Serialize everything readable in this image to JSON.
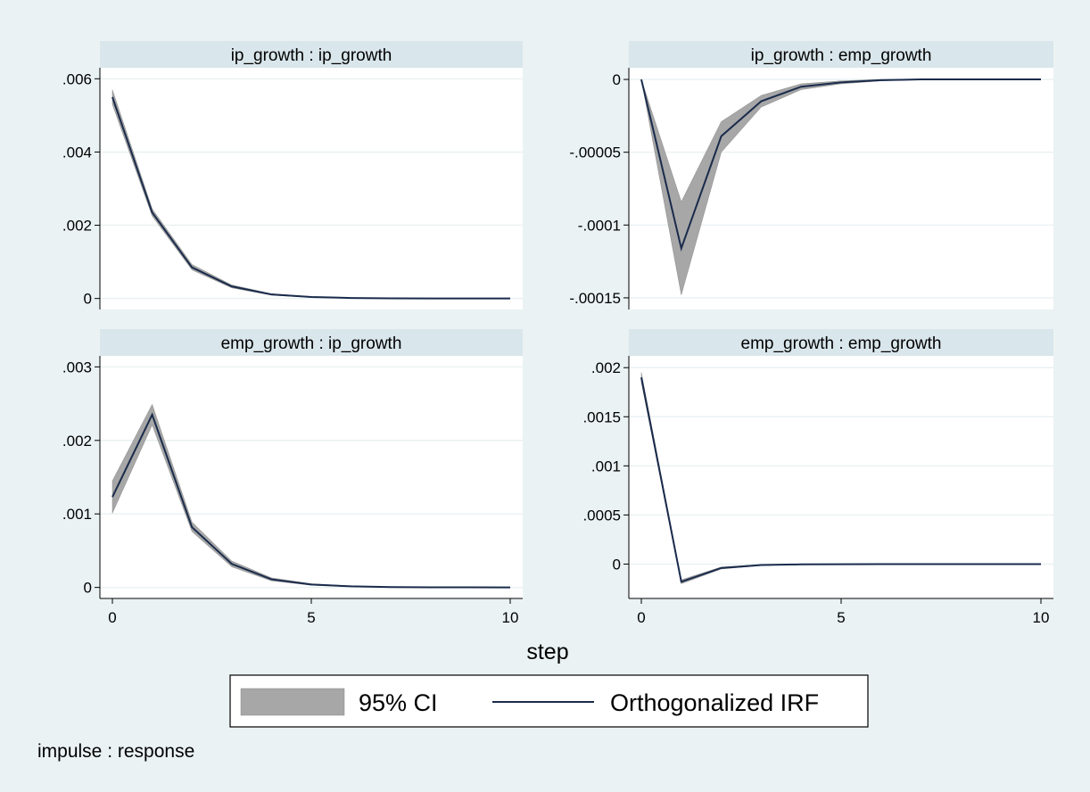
{
  "chart_data": {
    "type": "line",
    "xlabel": "step",
    "note": "impulse : response",
    "legend": {
      "placement": "bottom-center",
      "entries": [
        {
          "label": "95% CI",
          "kind": "band",
          "color": "#a7a7a7"
        },
        {
          "label": "Orthogonalized IRF",
          "kind": "line",
          "color": "#1a2b4c"
        }
      ]
    },
    "colors": {
      "band": "#a7a7a7",
      "line": "#1a2b4c",
      "background": "#eaf2f3",
      "title_strip": "#d9e6eb"
    },
    "panels": [
      {
        "id": "ip-ip",
        "title": "ip_growth : ip_growth",
        "x": [
          0,
          1,
          2,
          3,
          4,
          5,
          6,
          7,
          8,
          9,
          10
        ],
        "irf": [
          0.0055,
          0.00235,
          0.00085,
          0.00033,
          0.00011,
          4e-05,
          1.5e-05,
          5e-06,
          2e-06,
          1e-06,
          0.0
        ],
        "lower": [
          0.0053,
          0.00225,
          0.00078,
          0.00029,
          9e-05,
          3e-05,
          1e-05,
          3e-06,
          1e-06,
          0.0,
          0.0
        ],
        "upper": [
          0.0057,
          0.00245,
          0.00093,
          0.00037,
          0.00013,
          5e-05,
          2e-05,
          7e-06,
          3e-06,
          1e-06,
          0.0
        ],
        "xlim": [
          0,
          10
        ],
        "ylim": [
          -0.0003,
          0.0063
        ],
        "xticks": [
          0,
          5,
          10
        ],
        "xtick_labels": [
          "0",
          "5",
          "10"
        ],
        "yticks": [
          0,
          0.002,
          0.004,
          0.006
        ],
        "ytick_labels": [
          "0",
          ".002",
          ".004",
          ".006"
        ],
        "show_xaxis": false
      },
      {
        "id": "ip-emp",
        "title": "ip_growth : emp_growth",
        "x": [
          0,
          1,
          2,
          3,
          4,
          5,
          6,
          7,
          8,
          9,
          10
        ],
        "irf": [
          0.0,
          -0.000116,
          -3.9e-05,
          -1.5e-05,
          -5e-06,
          -2e-06,
          -5e-07,
          0.0,
          0.0,
          0.0,
          0.0
        ],
        "lower": [
          0.0,
          -0.000148,
          -5e-05,
          -1.9e-05,
          -7e-06,
          -3e-06,
          -1e-06,
          0.0,
          0.0,
          0.0,
          0.0
        ],
        "upper": [
          0.0,
          -8.4e-05,
          -2.9e-05,
          -1.1e-05,
          -3e-06,
          -1e-06,
          0.0,
          0.0,
          0.0,
          0.0,
          0.0
        ],
        "xlim": [
          0,
          10
        ],
        "ylim": [
          -0.000158,
          8e-06
        ],
        "xticks": [
          0,
          5,
          10
        ],
        "xtick_labels": [
          "0",
          "5",
          "10"
        ],
        "yticks": [
          -0.00015,
          -0.0001,
          -5e-05,
          0
        ],
        "ytick_labels": [
          "-.00015",
          "-.0001",
          "-.00005",
          "0"
        ],
        "show_xaxis": false
      },
      {
        "id": "emp-ip",
        "title": "emp_growth : ip_growth",
        "x": [
          0,
          1,
          2,
          3,
          4,
          5,
          6,
          7,
          8,
          9,
          10
        ],
        "irf": [
          0.00123,
          0.00235,
          0.00082,
          0.00032,
          0.00011,
          4e-05,
          1.5e-05,
          5e-06,
          2e-06,
          1e-06,
          0.0
        ],
        "lower": [
          0.00101,
          0.00221,
          0.00076,
          0.00028,
          9e-05,
          3e-05,
          1e-05,
          3e-06,
          1e-06,
          0.0,
          0.0
        ],
        "upper": [
          0.00145,
          0.00249,
          0.00089,
          0.00036,
          0.00013,
          5e-05,
          2e-05,
          7e-06,
          3e-06,
          1e-06,
          0.0
        ],
        "xlim": [
          0,
          10
        ],
        "ylim": [
          -0.00015,
          0.00315
        ],
        "xticks": [
          0,
          5,
          10
        ],
        "xtick_labels": [
          "0",
          "5",
          "10"
        ],
        "yticks": [
          0,
          0.001,
          0.002,
          0.003
        ],
        "ytick_labels": [
          "0",
          ".001",
          ".002",
          ".003"
        ],
        "show_xaxis": true
      },
      {
        "id": "emp-emp",
        "title": "emp_growth : emp_growth",
        "x": [
          0,
          1,
          2,
          3,
          4,
          5,
          6,
          7,
          8,
          9,
          10
        ],
        "irf": [
          0.0019,
          -0.00018,
          -4e-05,
          -1e-05,
          -3e-06,
          -1e-06,
          0.0,
          0.0,
          0.0,
          0.0,
          0.0
        ],
        "lower": [
          0.00185,
          -0.0002,
          -5e-05,
          -1.5e-05,
          -5e-06,
          -2e-06,
          -1e-06,
          0.0,
          0.0,
          0.0,
          0.0
        ],
        "upper": [
          0.00195,
          -0.00016,
          -3e-05,
          -6e-06,
          -2e-06,
          0.0,
          0.0,
          0.0,
          0.0,
          0.0,
          0.0
        ],
        "xlim": [
          0,
          10
        ],
        "ylim": [
          -0.00035,
          0.00212
        ],
        "xticks": [
          0,
          5,
          10
        ],
        "xtick_labels": [
          "0",
          "5",
          "10"
        ],
        "yticks": [
          0,
          0.0005,
          0.001,
          0.0015,
          0.002
        ],
        "ytick_labels": [
          "0",
          ".0005",
          ".001",
          ".0015",
          ".002"
        ],
        "show_xaxis": true
      }
    ]
  }
}
